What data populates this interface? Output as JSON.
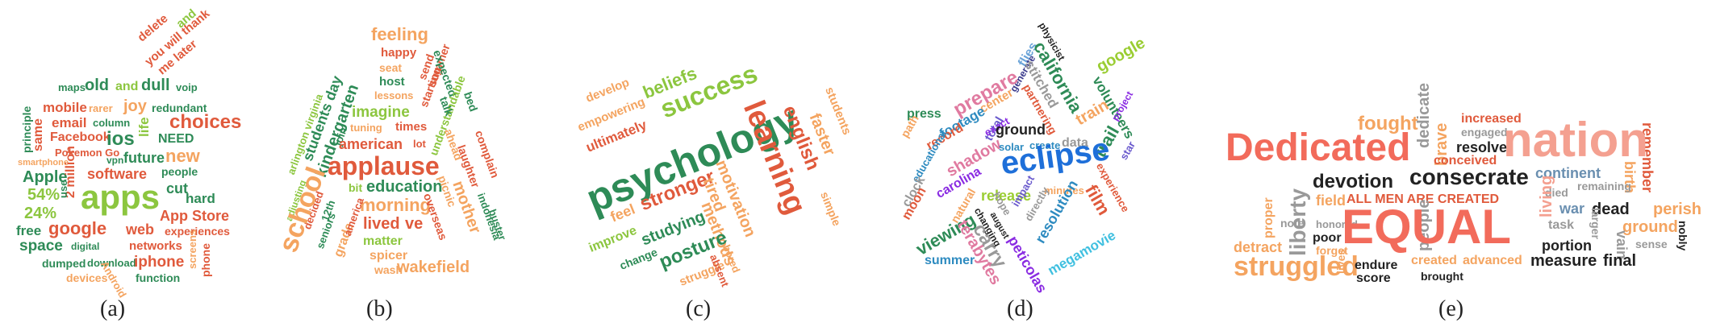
{
  "panels": [
    {
      "caption": "(a)",
      "words": [
        {
          "t": "delete",
          "c": "#e05a3c"
        },
        {
          "t": "you will thank",
          "c": "#e05a3c"
        },
        {
          "t": "and",
          "c": "#8cc63f"
        },
        {
          "t": "me later",
          "c": "#e05a3c"
        },
        {
          "t": "maps",
          "c": "#2e8b57"
        },
        {
          "t": "old",
          "c": "#2e8b57"
        },
        {
          "t": "and",
          "c": "#8cc63f"
        },
        {
          "t": "dull",
          "c": "#2e8b57"
        },
        {
          "t": "voip",
          "c": "#2e8b57"
        },
        {
          "t": "mobile",
          "c": "#e05a3c"
        },
        {
          "t": "rarer",
          "c": "#f4a460"
        },
        {
          "t": "joy",
          "c": "#f4a460"
        },
        {
          "t": "redundant",
          "c": "#2e8b57"
        },
        {
          "t": "email",
          "c": "#e05a3c"
        },
        {
          "t": "column",
          "c": "#2e8b57"
        },
        {
          "t": "life",
          "c": "#8cc63f"
        },
        {
          "t": "choices",
          "c": "#e05a3c"
        },
        {
          "t": "principle",
          "c": "#2e8b57"
        },
        {
          "t": "same",
          "c": "#e05a3c"
        },
        {
          "t": "Facebook",
          "c": "#e05a3c"
        },
        {
          "t": "ios",
          "c": "#2e8b57"
        },
        {
          "t": "NEED",
          "c": "#2e8b57"
        },
        {
          "t": "Pokemon Go",
          "c": "#e05a3c"
        },
        {
          "t": "smartphone",
          "c": "#f4a460"
        },
        {
          "t": "vpn",
          "c": "#2e8b57"
        },
        {
          "t": "future",
          "c": "#2e8b57"
        },
        {
          "t": "new",
          "c": "#f4a460"
        },
        {
          "t": "Apple",
          "c": "#2e8b57"
        },
        {
          "t": "people",
          "c": "#2e8b57"
        },
        {
          "t": "2 million",
          "c": "#e05a3c"
        },
        {
          "t": "software",
          "c": "#e05a3c"
        },
        {
          "t": "54%",
          "c": "#8cc63f"
        },
        {
          "t": "apps",
          "c": "#8cc63f"
        },
        {
          "t": "cut",
          "c": "#2e8b57"
        },
        {
          "t": "hard",
          "c": "#2e8b57"
        },
        {
          "t": "24%",
          "c": "#8cc63f"
        },
        {
          "t": "App Store",
          "c": "#e05a3c"
        },
        {
          "t": "free",
          "c": "#2e8b57"
        },
        {
          "t": "google",
          "c": "#e05a3c"
        },
        {
          "t": "web",
          "c": "#e05a3c"
        },
        {
          "t": "experiences",
          "c": "#e05a3c"
        },
        {
          "t": "space",
          "c": "#2e8b57"
        },
        {
          "t": "digital",
          "c": "#2e8b57"
        },
        {
          "t": "networks",
          "c": "#e05a3c"
        },
        {
          "t": "phone",
          "c": "#e05a3c"
        },
        {
          "t": "dumped",
          "c": "#2e8b57"
        },
        {
          "t": "download",
          "c": "#2e8b57"
        },
        {
          "t": "iphone",
          "c": "#e05a3c"
        },
        {
          "t": "screens",
          "c": "#f4a460"
        },
        {
          "t": "devices",
          "c": "#f4a460"
        },
        {
          "t": "function",
          "c": "#2e8b57"
        },
        {
          "t": "use",
          "c": "#2e8b57"
        },
        {
          "t": "Android",
          "c": "#f4a460"
        }
      ]
    },
    {
      "caption": "(b)",
      "words": [
        {
          "t": "feeling",
          "c": "#f4a460"
        },
        {
          "t": "happy",
          "c": "#e05a3c"
        },
        {
          "t": "seat",
          "c": "#f4a460"
        },
        {
          "t": "host",
          "c": "#2e8b57"
        },
        {
          "t": "lessons",
          "c": "#f4a460"
        },
        {
          "t": "send",
          "c": "#e05a3c"
        },
        {
          "t": "starting",
          "c": "#e05a3c"
        },
        {
          "t": "summer",
          "c": "#e05a3c"
        },
        {
          "t": "expected",
          "c": "#2e8b57"
        },
        {
          "t": "bed",
          "c": "#2e8b57"
        },
        {
          "t": "understandable",
          "c": "#8cc63f"
        },
        {
          "t": "talk",
          "c": "#2e8b57"
        },
        {
          "t": "ahead",
          "c": "#f4a460"
        },
        {
          "t": "complain",
          "c": "#e05a3c"
        },
        {
          "t": "laughter",
          "c": "#e05a3c"
        },
        {
          "t": "students day",
          "c": "#2e8b57"
        },
        {
          "t": "kindergarten",
          "c": "#2e8b57"
        },
        {
          "t": "imagine",
          "c": "#8cc63f"
        },
        {
          "t": "arlington virginia",
          "c": "#8cc63f"
        },
        {
          "t": "tuning",
          "c": "#f4a460"
        },
        {
          "t": "times",
          "c": "#e05a3c"
        },
        {
          "t": "join",
          "c": "#2e8b57"
        },
        {
          "t": "american",
          "c": "#e05a3c"
        },
        {
          "t": "lot",
          "c": "#e05a3c"
        },
        {
          "t": "applause",
          "c": "#e05a3c"
        },
        {
          "t": "adjusting",
          "c": "#8cc63f"
        },
        {
          "t": "decided",
          "c": "#e05a3c"
        },
        {
          "t": "bit",
          "c": "#8cc63f"
        },
        {
          "t": "education",
          "c": "#2e8b57"
        },
        {
          "t": "morning",
          "c": "#f4a460"
        },
        {
          "t": "school",
          "c": "#f4a460"
        },
        {
          "t": "12th",
          "c": "#2e8b57"
        },
        {
          "t": "lived",
          "c": "#e05a3c"
        },
        {
          "t": "ve",
          "c": "#e05a3c"
        },
        {
          "t": "seniors",
          "c": "#2e8b57"
        },
        {
          "t": "grade",
          "c": "#f4a460"
        },
        {
          "t": "america",
          "c": "#e05a3c"
        },
        {
          "t": "matter",
          "c": "#8cc63f"
        },
        {
          "t": "picnic",
          "c": "#f4a460"
        },
        {
          "t": "mother",
          "c": "#f4a460"
        },
        {
          "t": "overseas",
          "c": "#e05a3c"
        },
        {
          "t": "indonesia",
          "c": "#2e8b57"
        },
        {
          "t": "buster",
          "c": "#2e8b57"
        },
        {
          "t": "spicer",
          "c": "#f4a460"
        },
        {
          "t": "wash",
          "c": "#f4a460"
        },
        {
          "t": "wakefield",
          "c": "#f4a460"
        }
      ]
    },
    {
      "caption": "(c)",
      "words": [
        {
          "t": "develop",
          "c": "#f4a460"
        },
        {
          "t": "empowering",
          "c": "#f4a460"
        },
        {
          "t": "beliefs",
          "c": "#8cc63f"
        },
        {
          "t": "success",
          "c": "#8cc63f"
        },
        {
          "t": "ultimately",
          "c": "#e05a3c"
        },
        {
          "t": "psychology",
          "c": "#2e8b57"
        },
        {
          "t": "students",
          "c": "#f4a460"
        },
        {
          "t": "faster",
          "c": "#f4a460"
        },
        {
          "t": "english",
          "c": "#e05a3c"
        },
        {
          "t": "learning",
          "c": "#e05a3c"
        },
        {
          "t": "feel",
          "c": "#f4a460"
        },
        {
          "t": "stronger",
          "c": "#e05a3c"
        },
        {
          "t": "improve",
          "c": "#8cc63f"
        },
        {
          "t": "studying",
          "c": "#2e8b57"
        },
        {
          "t": "tired",
          "c": "#f4a460"
        },
        {
          "t": "motivation",
          "c": "#f4a460"
        },
        {
          "t": "change",
          "c": "#2e8b57"
        },
        {
          "t": "methods",
          "c": "#f4a460"
        },
        {
          "t": "posture",
          "c": "#2e8b57"
        },
        {
          "t": "simple",
          "c": "#f4a460"
        },
        {
          "t": "struggle",
          "c": "#f4a460"
        },
        {
          "t": "absent",
          "c": "#e05a3c"
        },
        {
          "t": "bored",
          "c": "#f4a460"
        }
      ]
    },
    {
      "caption": "(d)",
      "words": [
        {
          "t": "physicist",
          "c": "#222222"
        },
        {
          "t": "flies",
          "c": "#6aa3d8"
        },
        {
          "t": "generate",
          "c": "#3a3a8c"
        },
        {
          "t": "california",
          "c": "#2e8b57"
        },
        {
          "t": "prepare",
          "c": "#e07aa0"
        },
        {
          "t": "google",
          "c": "#9acd32"
        },
        {
          "t": "center",
          "c": "#f4a460"
        },
        {
          "t": "stitched",
          "c": "#999999"
        },
        {
          "t": "volunteers",
          "c": "#2e8b57"
        },
        {
          "t": "press",
          "c": "#2e8b57"
        },
        {
          "t": "footage",
          "c": "#2e8bc0"
        },
        {
          "t": "total",
          "c": "#6a5acd"
        },
        {
          "t": "partnering",
          "c": "#e05a3c"
        },
        {
          "t": "train",
          "c": "#f4a460"
        },
        {
          "t": "project",
          "c": "#8a2be2"
        },
        {
          "t": "path",
          "c": "#f4a460"
        },
        {
          "t": "record",
          "c": "#e05a3c"
        },
        {
          "t": "exact",
          "c": "#8a2be2"
        },
        {
          "t": "ground",
          "c": "#222222"
        },
        {
          "t": "trail",
          "c": "#2e8b57"
        },
        {
          "t": "star",
          "c": "#6a5acd"
        },
        {
          "t": "educational",
          "c": "#2e8bc0"
        },
        {
          "t": "shadow",
          "c": "#e07aa0"
        },
        {
          "t": "solar",
          "c": "#2e8bc0"
        },
        {
          "t": "create",
          "c": "#2e8bc0"
        },
        {
          "t": "data",
          "c": "#999999"
        },
        {
          "t": "carolina",
          "c": "#8a2be2"
        },
        {
          "t": "eclipse",
          "c": "#1e6fd9"
        },
        {
          "t": "experience",
          "c": "#e05a3c"
        },
        {
          "t": "clock",
          "c": "#999999"
        },
        {
          "t": "release",
          "c": "#9acd32"
        },
        {
          "t": "minutes",
          "c": "#f4a460"
        },
        {
          "t": "film",
          "c": "#e05a3c"
        },
        {
          "t": "moon",
          "c": "#e05a3c"
        },
        {
          "t": "natural",
          "c": "#f4a460"
        },
        {
          "t": "changing",
          "c": "#222222"
        },
        {
          "t": "hope",
          "c": "#999999"
        },
        {
          "t": "impact",
          "c": "#6a5acd"
        },
        {
          "t": "directly",
          "c": "#999999"
        },
        {
          "t": "viewing",
          "c": "#2e8b57"
        },
        {
          "t": "august",
          "c": "#222222"
        },
        {
          "t": "resolution",
          "c": "#2e8bc0"
        },
        {
          "t": "carry",
          "c": "#999999"
        },
        {
          "t": "summer",
          "c": "#2e8bc0"
        },
        {
          "t": "terabytes",
          "c": "#e07aa0"
        },
        {
          "t": "megamovie",
          "c": "#40c0e0"
        },
        {
          "t": "peticolas",
          "c": "#8a2be2"
        }
      ]
    },
    {
      "caption": "(e)",
      "words": [
        {
          "t": "fought",
          "c": "#f4a460"
        },
        {
          "t": "dedicate",
          "c": "#999999"
        },
        {
          "t": "increased",
          "c": "#e05a3c"
        },
        {
          "t": "engaged",
          "c": "#999999"
        },
        {
          "t": "brave",
          "c": "#f4a460"
        },
        {
          "t": "resolve",
          "c": "#222222"
        },
        {
          "t": "remember",
          "c": "#e05a3c"
        },
        {
          "t": "Dedicated",
          "c": "#f26b5b"
        },
        {
          "t": "nation",
          "c": "#f4a090"
        },
        {
          "t": "conceived",
          "c": "#e05a3c"
        },
        {
          "t": "continent",
          "c": "#6a8fb0"
        },
        {
          "t": "birth",
          "c": "#f4a460"
        },
        {
          "t": "devotion",
          "c": "#222222"
        },
        {
          "t": "consecrate",
          "c": "#222222"
        },
        {
          "t": "died",
          "c": "#999999"
        },
        {
          "t": "remaining",
          "c": "#999999"
        },
        {
          "t": "liberty",
          "c": "#999999"
        },
        {
          "t": "field",
          "c": "#f4a460"
        },
        {
          "t": "ALL MEN ARE CREATED",
          "c": "#e05a3c"
        },
        {
          "t": "living",
          "c": "#f4a090"
        },
        {
          "t": "war",
          "c": "#6a8fb0"
        },
        {
          "t": "dead",
          "c": "#222222"
        },
        {
          "t": "perish",
          "c": "#f4a460"
        },
        {
          "t": "proper",
          "c": "#f4a460"
        },
        {
          "t": "honored",
          "c": "#999999"
        },
        {
          "t": "note",
          "c": "#999999"
        },
        {
          "t": "people",
          "c": "#999999"
        },
        {
          "t": "task",
          "c": "#999999"
        },
        {
          "t": "larger",
          "c": "#999999"
        },
        {
          "t": "ground",
          "c": "#f4a460"
        },
        {
          "t": "nobly",
          "c": "#222222"
        },
        {
          "t": "detract",
          "c": "#f4a460"
        },
        {
          "t": "poor",
          "c": "#222222"
        },
        {
          "t": "EQUAL",
          "c": "#f26b5b"
        },
        {
          "t": "sense",
          "c": "#999999"
        },
        {
          "t": "forget",
          "c": "#f4a460"
        },
        {
          "t": "portion",
          "c": "#222222"
        },
        {
          "t": "vain",
          "c": "#999999"
        },
        {
          "t": "struggled",
          "c": "#f4a460"
        },
        {
          "t": "lives",
          "c": "#f4a460"
        },
        {
          "t": "endure",
          "c": "#222222"
        },
        {
          "t": "created",
          "c": "#f4a460"
        },
        {
          "t": "advanced",
          "c": "#f4a460"
        },
        {
          "t": "measure",
          "c": "#222222"
        },
        {
          "t": "final",
          "c": "#222222"
        },
        {
          "t": "score",
          "c": "#222222"
        },
        {
          "t": "brought",
          "c": "#222222"
        }
      ]
    }
  ]
}
